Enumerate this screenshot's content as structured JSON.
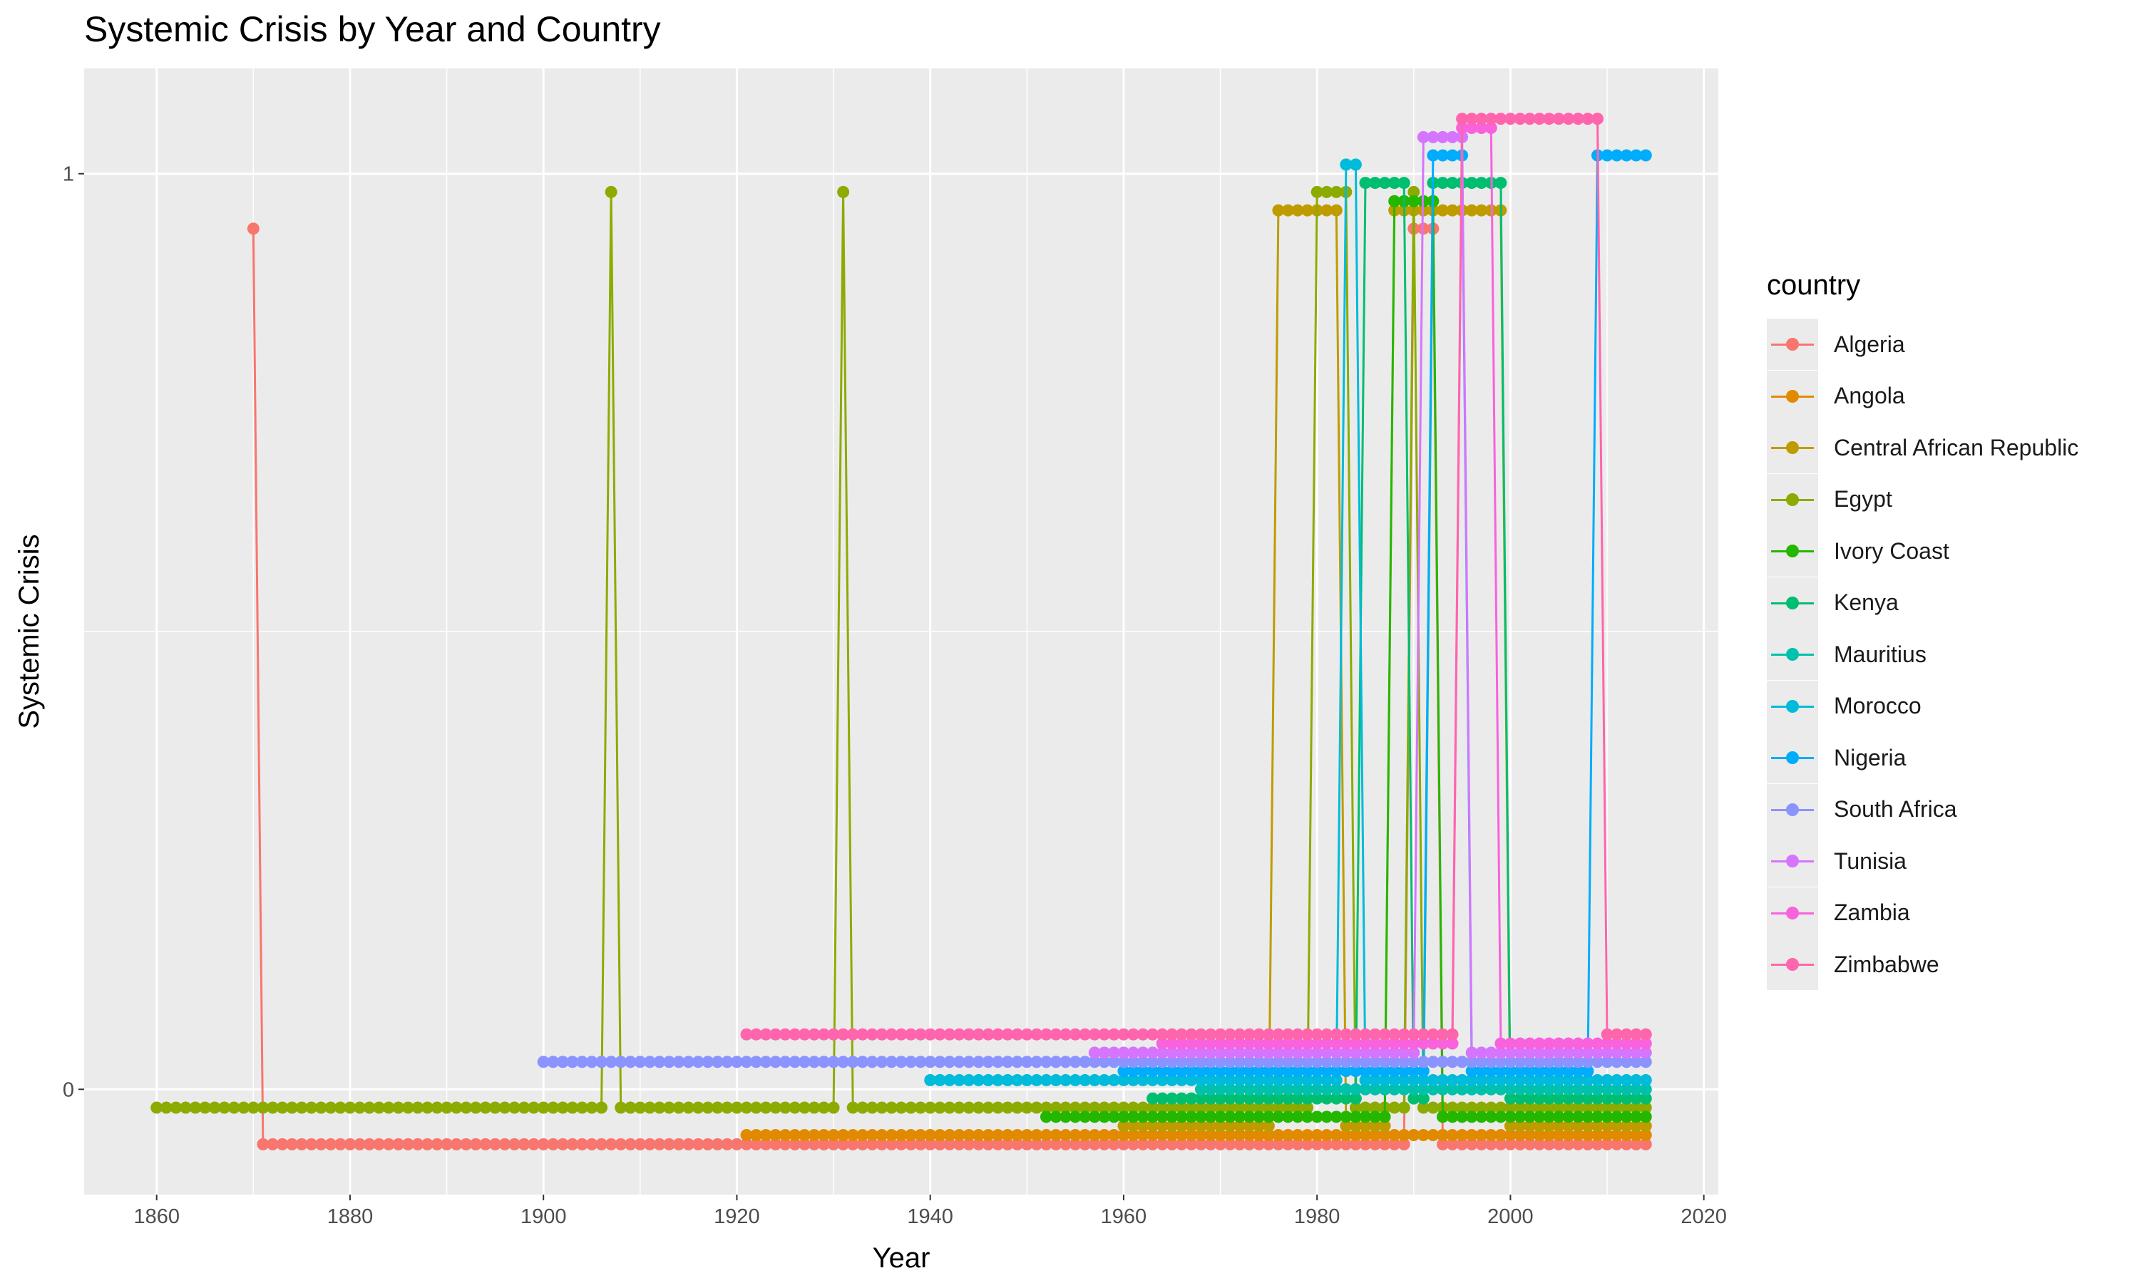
{
  "chart_data": {
    "type": "line",
    "title": "Systemic Crisis by Year and Country",
    "xlabel": "Year",
    "ylabel": "Systemic Crisis",
    "xlim": [
      1852.5,
      2021.5
    ],
    "ylim": [
      -0.115,
      1.115
    ],
    "x_ticks": [
      1860,
      1880,
      1900,
      1920,
      1940,
      1960,
      1980,
      2000,
      2020
    ],
    "x_minor": [
      1870,
      1890,
      1910,
      1930,
      1950,
      1970,
      1990,
      2010
    ],
    "y_ticks": [
      0,
      1
    ],
    "y_minor": [
      0.5
    ],
    "grid": true,
    "legend_title": "country",
    "legend_position": "right",
    "series": [
      {
        "name": "Algeria",
        "color": "#F8766D",
        "jitter": -0.06,
        "points": [
          [
            1870,
            1
          ],
          [
            1871,
            0
          ],
          [
            1884,
            0
          ],
          [
            1938,
            0
          ],
          [
            1962,
            0
          ],
          [
            1968,
            0
          ],
          [
            1989,
            0
          ],
          [
            1990,
            1
          ],
          [
            1992,
            1
          ],
          [
            1993,
            0
          ],
          [
            2014,
            0
          ]
        ]
      },
      {
        "name": "Angola",
        "color": "#E18A00",
        "jitter": -0.05,
        "points": [
          [
            1921,
            0
          ],
          [
            1938,
            0
          ],
          [
            1960,
            0
          ],
          [
            1961,
            0
          ],
          [
            1990,
            0
          ],
          [
            1991,
            0
          ],
          [
            2014,
            0
          ]
        ]
      },
      {
        "name": "Central African Republic",
        "color": "#BE9C00",
        "jitter": -0.04,
        "points": [
          [
            1960,
            0
          ],
          [
            1975,
            0
          ],
          [
            1976,
            1
          ],
          [
            1982,
            1
          ],
          [
            1983,
            0
          ],
          [
            1987,
            0
          ],
          [
            1988,
            1
          ],
          [
            1999,
            1
          ],
          [
            2000,
            0
          ],
          [
            2014,
            0
          ]
        ]
      },
      {
        "name": "Egypt",
        "color": "#8CAB00",
        "jitter": -0.02,
        "points": [
          [
            1860,
            0
          ],
          [
            1906,
            0
          ],
          [
            1907,
            1
          ],
          [
            1908,
            0
          ],
          [
            1930,
            0
          ],
          [
            1931,
            1
          ],
          [
            1932,
            0
          ],
          [
            1979,
            0
          ],
          [
            1980,
            1
          ],
          [
            1983,
            1
          ],
          [
            1984,
            0
          ],
          [
            1989,
            0
          ],
          [
            1990,
            1
          ],
          [
            1991,
            0
          ],
          [
            2014,
            0
          ]
        ]
      },
      {
        "name": "Ivory Coast",
        "color": "#24B700",
        "jitter": -0.03,
        "points": [
          [
            1952,
            0
          ],
          [
            1987,
            0
          ],
          [
            1988,
            1
          ],
          [
            1992,
            1
          ],
          [
            1993,
            0
          ],
          [
            2014,
            0
          ]
        ]
      },
      {
        "name": "Kenya",
        "color": "#00BE70",
        "jitter": -0.01,
        "points": [
          [
            1963,
            0
          ],
          [
            1984,
            0
          ],
          [
            1985,
            1
          ],
          [
            1989,
            1
          ],
          [
            1990,
            0
          ],
          [
            1991,
            0
          ],
          [
            1992,
            1
          ],
          [
            1999,
            1
          ],
          [
            2000,
            0
          ],
          [
            2014,
            0
          ]
        ]
      },
      {
        "name": "Mauritius",
        "color": "#00C1AB",
        "jitter": 0.0,
        "points": [
          [
            1968,
            0
          ],
          [
            2014,
            0
          ]
        ]
      },
      {
        "name": "Morocco",
        "color": "#00BBDA",
        "jitter": 0.01,
        "points": [
          [
            1940,
            0
          ],
          [
            1982,
            0
          ],
          [
            1983,
            1
          ],
          [
            1984,
            1
          ],
          [
            1985,
            0
          ],
          [
            2014,
            0
          ]
        ]
      },
      {
        "name": "Nigeria",
        "color": "#00ACFC",
        "jitter": 0.02,
        "points": [
          [
            1960,
            0
          ],
          [
            1991,
            0
          ],
          [
            1992,
            1
          ],
          [
            1995,
            1
          ],
          [
            1996,
            0
          ],
          [
            2008,
            0
          ],
          [
            2009,
            1
          ],
          [
            2014,
            1
          ]
        ]
      },
      {
        "name": "South Africa",
        "color": "#8B93FF",
        "jitter": 0.03,
        "points": [
          [
            1900,
            0
          ],
          [
            2014,
            0
          ]
        ]
      },
      {
        "name": "Tunisia",
        "color": "#D575FE",
        "jitter": 0.04,
        "points": [
          [
            1957,
            0
          ],
          [
            1990,
            0
          ],
          [
            1991,
            1
          ],
          [
            1995,
            1
          ],
          [
            1996,
            0
          ],
          [
            2014,
            0
          ]
        ]
      },
      {
        "name": "Zambia",
        "color": "#F962DD",
        "jitter": 0.05,
        "points": [
          [
            1964,
            0
          ],
          [
            1994,
            0
          ],
          [
            1995,
            1
          ],
          [
            1998,
            1
          ],
          [
            1999,
            0
          ],
          [
            2014,
            0
          ]
        ]
      },
      {
        "name": "Zimbabwe",
        "color": "#FF65AC",
        "jitter": 0.06,
        "points": [
          [
            1921,
            0
          ],
          [
            1994,
            0
          ],
          [
            1995,
            1
          ],
          [
            2009,
            1
          ],
          [
            2010,
            0
          ],
          [
            2014,
            0
          ]
        ]
      }
    ]
  }
}
